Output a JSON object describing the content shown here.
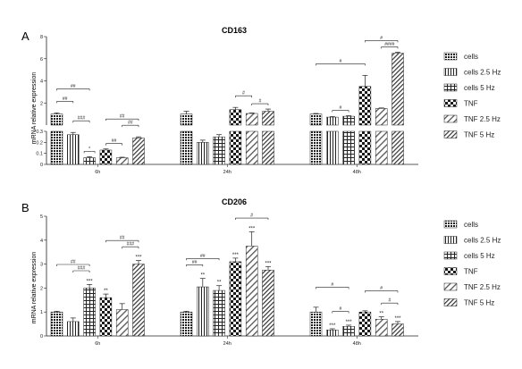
{
  "chart_data": [
    {
      "type": "bar",
      "panel_label": "A",
      "title": "CD163",
      "ylabel": "mRNA relative expression",
      "categories": [
        "6h",
        "24h",
        "48h"
      ],
      "axis_break": {
        "lower": [
          0,
          0.3
        ],
        "upper_ticks": [
          "2",
          "4",
          "6",
          "8"
        ]
      },
      "series": [
        {
          "name": "cells",
          "values": [
            1.0,
            1.0,
            1.0
          ],
          "errors": [
            0.1,
            0.25,
            0.05
          ]
        },
        {
          "name": "cells 2.5 Hz",
          "values": [
            0.27,
            0.2,
            0.72
          ],
          "errors": [
            0.02,
            0.02,
            0.05
          ]
        },
        {
          "name": "cells 5 Hz",
          "values": [
            0.06,
            0.25,
            0.8
          ],
          "errors": [
            0.01,
            0.02,
            0.05
          ]
        },
        {
          "name": "TNF",
          "values": [
            0.13,
            1.4,
            3.5
          ],
          "errors": [
            0.01,
            0.2,
            1.0
          ]
        },
        {
          "name": "TNF 2.5 Hz",
          "values": [
            0.06,
            1.05,
            1.5
          ],
          "errors": [
            0.005,
            0.05,
            0.05
          ]
        },
        {
          "name": "TNF 5 Hz",
          "values": [
            0.24,
            1.25,
            6.5
          ],
          "errors": [
            0.01,
            0.2,
            0.1
          ]
        }
      ],
      "significance": [
        {
          "group": 0,
          "from": 0,
          "to": 2,
          "label": "##",
          "level": 0
        },
        {
          "group": 0,
          "from": 0,
          "to": 1,
          "label": "##",
          "level": 1
        },
        {
          "group": 0,
          "from": 1,
          "to": 2,
          "label": "###",
          "level": 2
        },
        {
          "group": 0,
          "from": 2,
          "to": 2,
          "label": "*",
          "level": 3
        },
        {
          "group": 0,
          "from": 3,
          "to": 5,
          "label": "##",
          "level": 0
        },
        {
          "group": 0,
          "from": 4,
          "to": 5,
          "label": "##",
          "level": 1
        },
        {
          "group": 0,
          "from": 3,
          "to": 4,
          "label": "##",
          "level": 2
        },
        {
          "group": 1,
          "from": 3,
          "to": 4,
          "label": "#",
          "level": 0
        },
        {
          "group": 1,
          "from": 4,
          "to": 5,
          "label": "#",
          "level": 1
        },
        {
          "group": 2,
          "from": 0,
          "to": 3,
          "label": "#",
          "level": 0
        },
        {
          "group": 2,
          "from": 1,
          "to": 2,
          "label": "#",
          "level": 1
        },
        {
          "group": 2,
          "from": 3,
          "to": 5,
          "label": "#",
          "level": 0
        },
        {
          "group": 2,
          "from": 4,
          "to": 5,
          "label": "####",
          "level": 1
        }
      ],
      "legend": "right"
    },
    {
      "type": "bar",
      "panel_label": "B",
      "title": "CD206",
      "ylabel": "mRNA relative expression",
      "categories": [
        "6h",
        "24h",
        "48h"
      ],
      "ylim": [
        0,
        5
      ],
      "yticks": [
        0,
        1,
        2,
        3,
        4,
        5
      ],
      "series": [
        {
          "name": "cells",
          "values": [
            1.0,
            1.0,
            1.0
          ],
          "errors": [
            0.03,
            0.03,
            0.2
          ]
        },
        {
          "name": "cells 2.5 Hz",
          "values": [
            0.6,
            2.05,
            0.25
          ],
          "errors": [
            0.15,
            0.35,
            0.05
          ],
          "stars": [
            "",
            "**",
            "***"
          ]
        },
        {
          "name": "cells 5 Hz",
          "values": [
            2.0,
            1.9,
            0.4
          ],
          "errors": [
            0.15,
            0.2,
            0.05
          ],
          "stars": [
            "***",
            "**",
            "***"
          ]
        },
        {
          "name": "TNF",
          "values": [
            1.6,
            3.1,
            1.0
          ],
          "errors": [
            0.15,
            0.15,
            0.05
          ],
          "stars": [
            "**",
            "***",
            ""
          ]
        },
        {
          "name": "TNF 2.5 Hz",
          "values": [
            1.1,
            3.75,
            0.7
          ],
          "errors": [
            0.25,
            0.6,
            0.1
          ],
          "stars": [
            "",
            "***",
            "**"
          ]
        },
        {
          "name": "TNF 5 Hz",
          "values": [
            3.0,
            2.75,
            0.5
          ],
          "errors": [
            0.15,
            0.15,
            0.1
          ],
          "stars": [
            "***",
            "***",
            "***"
          ]
        }
      ],
      "significance": [
        {
          "group": 0,
          "from": 0,
          "to": 2,
          "label": "##",
          "level": 0
        },
        {
          "group": 0,
          "from": 1,
          "to": 2,
          "label": "###",
          "level": 1
        },
        {
          "group": 0,
          "from": 3,
          "to": 5,
          "label": "##",
          "level": 0
        },
        {
          "group": 0,
          "from": 4,
          "to": 5,
          "label": "###",
          "level": 1
        },
        {
          "group": 1,
          "from": 0,
          "to": 2,
          "label": "##",
          "level": 0
        },
        {
          "group": 1,
          "from": 0,
          "to": 1,
          "label": "##",
          "level": 1
        },
        {
          "group": 1,
          "from": 3,
          "to": 5,
          "label": "#",
          "level": 0
        },
        {
          "group": 2,
          "from": 0,
          "to": 2,
          "label": "#",
          "level": 0
        },
        {
          "group": 2,
          "from": 1,
          "to": 2,
          "label": "#",
          "level": 1
        },
        {
          "group": 2,
          "from": 3,
          "to": 5,
          "label": "#",
          "level": 0
        },
        {
          "group": 2,
          "from": 4,
          "to": 5,
          "label": "#",
          "level": 1
        }
      ],
      "legend": "right"
    }
  ],
  "colors": {
    "ink": "#222222",
    "fill": "#ffffff",
    "background": "#ffffff"
  }
}
